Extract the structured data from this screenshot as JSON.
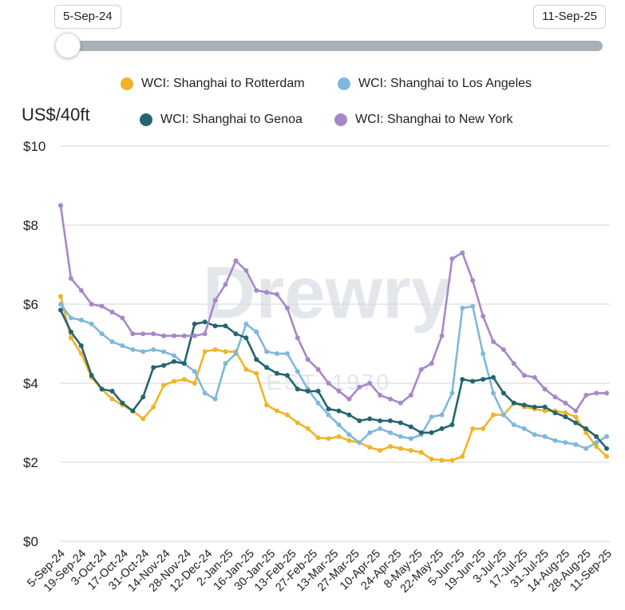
{
  "slider": {
    "start_label": "5-Sep-24",
    "end_label": "11-Sep-25"
  },
  "unit_label": "US$/40ft",
  "colors": {
    "rotterdam": "#f0b429",
    "los_angeles": "#7fb8dc",
    "genoa": "#246570",
    "new_york": "#a688c8",
    "grid": "#d6d6d6",
    "watermark": "#e3e7ec"
  },
  "watermark": {
    "brand": "Drewry",
    "est": "EST. 1970"
  },
  "legend": [
    {
      "key": "rotterdam",
      "label": "WCI: Shanghai to Rotterdam"
    },
    {
      "key": "los_angeles",
      "label": "WCI: Shanghai to Los Angeles"
    },
    {
      "key": "genoa",
      "label": "WCI: Shanghai to Genoa"
    },
    {
      "key": "new_york",
      "label": "WCI: Shanghai to New York"
    }
  ],
  "chart_data": {
    "type": "line",
    "ylabel": "US$/40ft",
    "ylim": [
      0,
      10
    ],
    "y_ticks": [
      "$0",
      "$2",
      "$4",
      "$6",
      "$8",
      "$10"
    ],
    "grid": "horizontal",
    "legend_position": "top",
    "x_tick_labels": [
      "5-Sep-24",
      "19-Sep-24",
      "3-Oct-24",
      "17-Oct-24",
      "31-Oct-24",
      "14-Nov-24",
      "28-Nov-24",
      "12-Dec-24",
      "2-Jan-25",
      "16-Jan-25",
      "30-Jan-25",
      "13-Feb-25",
      "27-Feb-25",
      "13-Mar-25",
      "27-Mar-25",
      "10-Apr-25",
      "24-Apr-25",
      "8-May-25",
      "22-May-25",
      "5-Jun-25",
      "19-Jun-25",
      "3-Jul-25",
      "17-Jul-25",
      "31-Jul-25",
      "14-Aug-25",
      "28-Aug-25",
      "11-Sep-25"
    ],
    "x": [
      "5-Sep-24",
      "12-Sep-24",
      "19-Sep-24",
      "26-Sep-24",
      "3-Oct-24",
      "10-Oct-24",
      "17-Oct-24",
      "24-Oct-24",
      "31-Oct-24",
      "7-Nov-24",
      "14-Nov-24",
      "21-Nov-24",
      "28-Nov-24",
      "5-Dec-24",
      "12-Dec-24",
      "19-Dec-24",
      "26-Dec-24",
      "2-Jan-25",
      "9-Jan-25",
      "16-Jan-25",
      "23-Jan-25",
      "30-Jan-25",
      "6-Feb-25",
      "13-Feb-25",
      "20-Feb-25",
      "27-Feb-25",
      "6-Mar-25",
      "13-Mar-25",
      "20-Mar-25",
      "27-Mar-25",
      "3-Apr-25",
      "10-Apr-25",
      "17-Apr-25",
      "24-Apr-25",
      "1-May-25",
      "8-May-25",
      "15-May-25",
      "22-May-25",
      "29-May-25",
      "5-Jun-25",
      "12-Jun-25",
      "19-Jun-25",
      "26-Jun-25",
      "3-Jul-25",
      "10-Jul-25",
      "17-Jul-25",
      "24-Jul-25",
      "31-Jul-25",
      "7-Aug-25",
      "14-Aug-25",
      "21-Aug-25",
      "28-Aug-25",
      "4-Sep-25",
      "11-Sep-25"
    ],
    "series": [
      {
        "key": "rotterdam",
        "name": "WCI: Shanghai to Rotterdam",
        "values": [
          6.2,
          5.15,
          4.75,
          4.15,
          3.85,
          3.6,
          3.45,
          3.3,
          3.1,
          3.4,
          3.95,
          4.05,
          4.1,
          4.0,
          4.8,
          4.85,
          4.8,
          4.8,
          4.35,
          4.25,
          3.45,
          3.3,
          3.2,
          3.0,
          2.85,
          2.62,
          2.6,
          2.65,
          2.55,
          2.5,
          2.38,
          2.3,
          2.4,
          2.35,
          2.3,
          2.25,
          2.08,
          2.05,
          2.05,
          2.15,
          2.85,
          2.85,
          3.2,
          3.2,
          3.5,
          3.4,
          3.35,
          3.3,
          3.3,
          3.25,
          3.15,
          2.75,
          2.4,
          2.15
        ]
      },
      {
        "key": "los_angeles",
        "name": "WCI: Shanghai to Los Angeles",
        "values": [
          6.0,
          5.65,
          5.6,
          5.5,
          5.25,
          5.05,
          4.95,
          4.85,
          4.8,
          4.85,
          4.8,
          4.7,
          4.5,
          4.3,
          3.75,
          3.6,
          4.5,
          4.75,
          5.5,
          5.3,
          4.8,
          4.75,
          4.75,
          4.3,
          3.85,
          3.5,
          3.2,
          2.95,
          2.7,
          2.5,
          2.75,
          2.85,
          2.75,
          2.65,
          2.6,
          2.7,
          3.15,
          3.2,
          3.75,
          5.9,
          5.95,
          4.75,
          3.75,
          3.2,
          2.95,
          2.85,
          2.7,
          2.65,
          2.55,
          2.5,
          2.45,
          2.35,
          2.5,
          2.65
        ]
      },
      {
        "key": "genoa",
        "name": "WCI: Shanghai to Genoa",
        "values": [
          5.85,
          5.3,
          4.95,
          4.2,
          3.85,
          3.8,
          3.5,
          3.3,
          3.65,
          4.4,
          4.45,
          4.55,
          4.5,
          5.5,
          5.55,
          5.45,
          5.45,
          5.25,
          5.15,
          4.6,
          4.4,
          4.25,
          4.2,
          3.85,
          3.8,
          3.8,
          3.35,
          3.3,
          3.2,
          3.05,
          3.1,
          3.05,
          3.05,
          3.0,
          2.9,
          2.75,
          2.75,
          2.85,
          2.95,
          4.1,
          4.05,
          4.1,
          4.15,
          3.75,
          3.5,
          3.45,
          3.4,
          3.4,
          3.25,
          3.15,
          3.0,
          2.85,
          2.65,
          2.35
        ]
      },
      {
        "key": "new_york",
        "name": "WCI: Shanghai to New York",
        "values": [
          8.5,
          6.65,
          6.35,
          6.0,
          5.95,
          5.8,
          5.65,
          5.25,
          5.25,
          5.25,
          5.2,
          5.2,
          5.2,
          5.2,
          5.25,
          6.1,
          6.5,
          7.1,
          6.85,
          6.35,
          6.3,
          6.25,
          5.9,
          5.15,
          4.6,
          4.35,
          4.0,
          3.8,
          3.6,
          3.9,
          4.0,
          3.7,
          3.6,
          3.5,
          3.7,
          4.35,
          4.5,
          5.2,
          7.15,
          7.3,
          6.6,
          5.7,
          5.05,
          4.85,
          4.5,
          4.2,
          4.15,
          3.85,
          3.65,
          3.5,
          3.3,
          3.7,
          3.75,
          3.75
        ]
      }
    ]
  }
}
